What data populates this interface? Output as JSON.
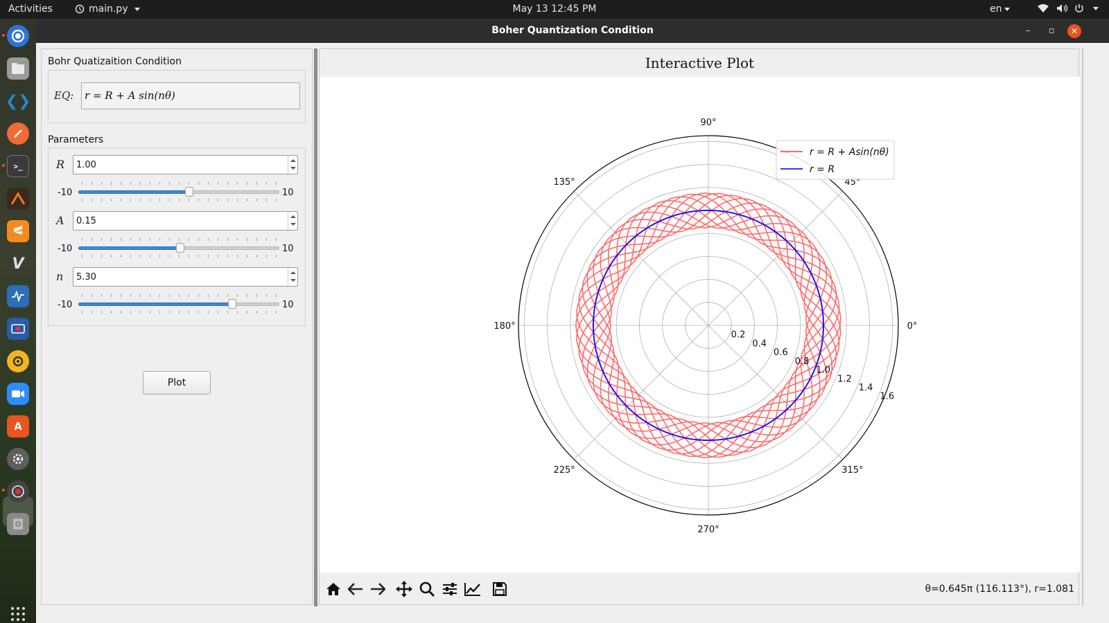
{
  "topbar": {
    "activities": "Activities",
    "app_menu": "main.py",
    "clock": "May 13  12:45 PM",
    "lang": "en"
  },
  "dock": {
    "apps": [
      "chromium",
      "files",
      "vscode",
      "postman",
      "terminal",
      "matlab",
      "sublime-text",
      "vim",
      "system-monitor",
      "video-recorder",
      "rhythmbox",
      "zoom",
      "software-center",
      "settings",
      "disk-utility",
      "removable-drive",
      "show-applications"
    ]
  },
  "window": {
    "title": "Boher Quantization Condition",
    "minimize": "–",
    "maximize": "▫",
    "close": "✕"
  },
  "equation_group": {
    "title": "Bohr Quatizaition Condition",
    "eq_label": "EQ:",
    "eq_value": "r = R + A sin(nθ)"
  },
  "parameters": {
    "title": "Parameters",
    "items": [
      {
        "label": "R",
        "value": "1.00",
        "slider_min": "-10",
        "slider_max": "10",
        "slider_level": 1.0
      },
      {
        "label": "A",
        "value": "0.15",
        "slider_min": "-10",
        "slider_max": "10",
        "slider_level": 0.15
      },
      {
        "label": "n",
        "value": "5.30",
        "slider_min": "-10",
        "slider_max": "10",
        "slider_level": 5.3
      }
    ]
  },
  "plot_button": "Plot",
  "plot": {
    "title": "Interactive Plot",
    "coords_readout": "θ=0.645π (116.113°), r=1.081"
  },
  "toolbar": {
    "tools": [
      "home-icon",
      "back-arrow-icon",
      "forward-arrow-icon",
      "pan-icon",
      "zoom-icon",
      "configure-subplots-icon",
      "edit-axes-icon",
      "save-icon"
    ]
  },
  "colors": {
    "series_red": "#ff5050",
    "series_blue": "#1515ff",
    "accent_orange": "#e95420",
    "slider_blue": "#3d87d6"
  },
  "chart_data": {
    "type": "line",
    "projection": "polar",
    "theta_ticks": [
      "0°",
      "45°",
      "90°",
      "135°",
      "180°",
      "225°",
      "270°",
      "315°"
    ],
    "r_ticks": [
      "0.2",
      "0.4",
      "0.6",
      "0.8",
      "1.0",
      "1.2",
      "1.4",
      "1.6"
    ],
    "rlim": [
      0,
      1.65
    ],
    "grid": true,
    "legend_placement": "upper-right",
    "series": [
      {
        "name": "r = R + Asin(nθ)",
        "color": "#ff5050",
        "R": 1.0,
        "A": 0.15,
        "n": 5.3,
        "theta_range": [
          0,
          62.83
        ]
      },
      {
        "name": "r = R",
        "color": "#1515ff",
        "R": 1.0
      }
    ]
  }
}
